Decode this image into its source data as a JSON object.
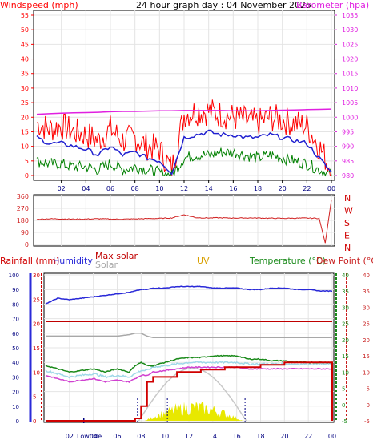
{
  "title": "24 hour graph day : 04 November 2025",
  "x_ticks": [
    "02",
    "04",
    "06",
    "08",
    "10",
    "12",
    "14",
    "16",
    "18",
    "20",
    "22",
    "00"
  ],
  "colors": {
    "windspeed": "#ff0000",
    "gust": "#ff0000",
    "average": "#2020d0",
    "wind_min": "#008000",
    "barometer": "#e020e0",
    "direction": "#d02020",
    "rainfall": "#d00000",
    "humidity": "#2a2ad8",
    "max_solar": "#c00000",
    "solar": "#a8a8a8",
    "uv": "#d8a000",
    "temperature": "#1a8a1a",
    "dewpoint": "#c81e1e",
    "chill": "#d040d0",
    "apparent": "#a0d8e8",
    "solar_fill": "#e8e800"
  },
  "panel1": {
    "left_label": "Windspeed (mph)",
    "right_label": "Barometer (hpa)",
    "left_ticks": [
      "55",
      "50",
      "45",
      "40",
      "35",
      "30",
      "25",
      "20",
      "15",
      "10",
      "5",
      "0"
    ],
    "right_ticks": [
      "1035",
      "1030",
      "1025",
      "1020",
      "1015",
      "1010",
      "1005",
      "1000",
      "995",
      "990",
      "985",
      "980"
    ]
  },
  "panel2": {
    "left_ticks": [
      "360",
      "270",
      "180",
      "90",
      "0"
    ],
    "right_ticks": [
      "N",
      "W",
      "S",
      "E",
      "N"
    ]
  },
  "panel3": {
    "rain_label": "Rainfall (mm)",
    "humidity_label": "Humidity",
    "maxsolar_label": "Max solar",
    "solar_label": "Solar",
    "uv_label": "UV",
    "temp_label": "Temperature (°C)",
    "dew_label": "Dew Point (°C)",
    "hum_ticks": [
      "100",
      "90",
      "80",
      "70",
      "60",
      "50",
      "40",
      "30",
      "20",
      "10",
      "0"
    ],
    "rain_ticks": [
      "30",
      "25",
      "20",
      "15",
      "10",
      "5",
      "0"
    ],
    "temp_ticks": [
      "40",
      "35",
      "30",
      "25",
      "20",
      "15",
      "10",
      "5",
      "0",
      "-5"
    ],
    "dew_ticks": [
      "40",
      "35",
      "30",
      "25",
      "20",
      "15",
      "10",
      "5",
      "0",
      "-5"
    ],
    "low_tide": "Lowtide"
  },
  "chart_data": [
    {
      "type": "line",
      "title": "24 hour graph day : 04 November 2025",
      "ylabel": "Windspeed (mph)",
      "y2label": "Barometer (hpa)",
      "ylim": [
        0,
        55
      ],
      "y2lim": [
        980,
        1035
      ],
      "x_hours": [
        0,
        1,
        2,
        3,
        4,
        5,
        6,
        7,
        8,
        9,
        10,
        11,
        12,
        13,
        14,
        15,
        16,
        17,
        18,
        19,
        20,
        21,
        22,
        23,
        24
      ],
      "series": [
        {
          "name": "Windspeed (mph)",
          "values": [
            18,
            16,
            17,
            15,
            14,
            12,
            16,
            12,
            13,
            10,
            9,
            2,
            21,
            22,
            22,
            21,
            20,
            19,
            18,
            20,
            19,
            18,
            17,
            10,
            2
          ]
        },
        {
          "name": "average",
          "values": [
            13,
            11,
            11,
            10,
            9,
            7,
            10,
            7,
            8,
            6,
            5,
            1,
            13,
            14,
            15,
            14,
            14,
            13,
            13,
            14,
            13,
            12,
            11,
            6,
            1
          ]
        },
        {
          "name": "minimum",
          "values": [
            5,
            4,
            4,
            3,
            3,
            2,
            4,
            2,
            3,
            2,
            1,
            0,
            6,
            7,
            7,
            8,
            8,
            7,
            6,
            7,
            6,
            5,
            4,
            2,
            0
          ]
        },
        {
          "name": "Barometer (hpa)",
          "values": [
            1001,
            1001.2,
            1001.4,
            1001.5,
            1001.6,
            1001.7,
            1001.9,
            1002,
            1002,
            1002.1,
            1002.2,
            1002.2,
            1002.3,
            1002.3,
            1002.3,
            1002.3,
            1002.2,
            1002.2,
            1002.2,
            1002.3,
            1002.4,
            1002.5,
            1002.6,
            1002.7,
            1002.8
          ]
        }
      ]
    },
    {
      "type": "line",
      "title": "",
      "ylabel": "",
      "ylim": [
        0,
        360
      ],
      "x_hours": [
        0,
        1,
        2,
        3,
        4,
        5,
        6,
        7,
        8,
        9,
        10,
        11,
        12,
        13,
        14,
        15,
        16,
        17,
        18,
        19,
        20,
        21,
        22,
        23,
        23.5,
        24
      ],
      "series": [
        {
          "name": "wind direction",
          "values": [
            188,
            192,
            191,
            189,
            190,
            192,
            190,
            189,
            191,
            193,
            195,
            198,
            222,
            200,
            198,
            199,
            197,
            198,
            198,
            196,
            195,
            196,
            197,
            195,
            10,
            335
          ]
        }
      ]
    },
    {
      "type": "line",
      "title": "",
      "x_hours": [
        0,
        1,
        2,
        3,
        4,
        5,
        6,
        7,
        7.5,
        8,
        8.5,
        9,
        10,
        11,
        12,
        13,
        14,
        15,
        16,
        17,
        18,
        19,
        20,
        21,
        22,
        23,
        24
      ],
      "series": [
        {
          "name": "Humidity",
          "values": [
            80,
            84,
            83,
            84,
            85,
            86,
            87,
            88,
            89,
            90,
            90,
            91,
            91,
            92,
            92,
            92,
            91,
            91,
            91,
            90,
            90,
            91,
            91,
            90,
            90,
            89,
            89
          ]
        },
        {
          "name": "Rainfall (mm)",
          "values": [
            0,
            0,
            0,
            0,
            0,
            0,
            0,
            0,
            0.5,
            3,
            8,
            9,
            9,
            10,
            10,
            10.5,
            10.5,
            11,
            11,
            11,
            11.5,
            11.5,
            12,
            12,
            12,
            12,
            0
          ]
        },
        {
          "name": "Max solar",
          "values": [
            68,
            68,
            68,
            68,
            68,
            68,
            68,
            68,
            68,
            68,
            68,
            68,
            68,
            68,
            68,
            68,
            68,
            68,
            68,
            68,
            68,
            68,
            68,
            68,
            68,
            68,
            68
          ]
        },
        {
          "name": "Solar",
          "values": [
            58,
            58,
            58,
            58,
            58,
            58,
            58,
            59,
            60,
            60,
            58,
            57,
            57,
            57,
            57,
            57,
            57,
            57,
            57,
            57,
            57,
            57,
            57,
            57,
            57,
            57,
            57
          ]
        },
        {
          "name": "Temperature (°C)",
          "values": [
            12,
            11,
            10,
            10.5,
            11,
            10,
            11,
            10,
            12,
            13,
            12,
            12,
            13,
            14,
            14.5,
            14.5,
            15,
            15,
            15,
            14,
            14,
            13.5,
            13.5,
            13,
            13,
            13,
            13
          ]
        },
        {
          "name": "Dew Point (°C)",
          "values": [
            9,
            8,
            7,
            7.5,
            8,
            7,
            7.5,
            7,
            8,
            9,
            9,
            10,
            10.5,
            11,
            11.5,
            11.5,
            11.5,
            11.5,
            11.5,
            11,
            11,
            11,
            11,
            11,
            11,
            11,
            11
          ]
        },
        {
          "name": "UV",
          "values": [
            0,
            0,
            0,
            0,
            0,
            0,
            0,
            0,
            0,
            0.5,
            1.5,
            2,
            3,
            4,
            4.5,
            4.5,
            4,
            3,
            1.5,
            0,
            0,
            0,
            0,
            0,
            0,
            0,
            0
          ]
        }
      ],
      "yaxes": {
        "Humidity": [
          0,
          100
        ],
        "Rainfall (mm)": [
          0,
          30
        ],
        "Temperature (°C)": [
          -5,
          40
        ],
        "Dew Point (°C)": [
          -5,
          40
        ]
      }
    }
  ]
}
